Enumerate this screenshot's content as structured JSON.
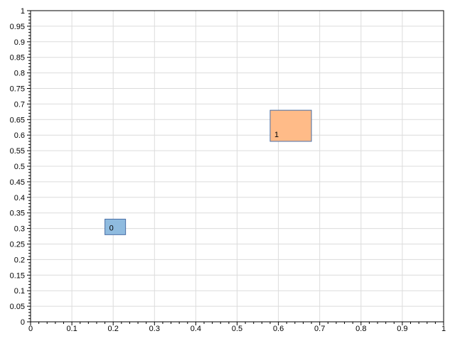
{
  "chart_data": {
    "type": "scatter",
    "title": "",
    "xlabel": "",
    "ylabel": "",
    "xlim": [
      0,
      1
    ],
    "ylim": [
      0,
      1
    ],
    "grid": true,
    "x_ticks": [
      "0",
      "0.1",
      "0.2",
      "0.3",
      "0.4",
      "0.5",
      "0.6",
      "0.7",
      "0.8",
      "0.9",
      "1"
    ],
    "y_ticks": [
      "0",
      "0.05",
      "0.1",
      "0.15",
      "0.2",
      "0.25",
      "0.3",
      "0.35",
      "0.4",
      "0.45",
      "0.5",
      "0.55",
      "0.6",
      "0.65",
      "0.7",
      "0.75",
      "0.8",
      "0.85",
      "0.9",
      "0.95",
      "1"
    ],
    "rectangles": [
      {
        "label": "0",
        "x0": 0.18,
        "x1": 0.23,
        "y0": 0.28,
        "y1": 0.33,
        "fill": "#8fbbdf",
        "stroke": "#4a6fa5"
      },
      {
        "label": "1",
        "x0": 0.58,
        "x1": 0.68,
        "y0": 0.58,
        "y1": 0.68,
        "fill": "#ffbb88",
        "stroke": "#4a6fa5"
      }
    ]
  }
}
